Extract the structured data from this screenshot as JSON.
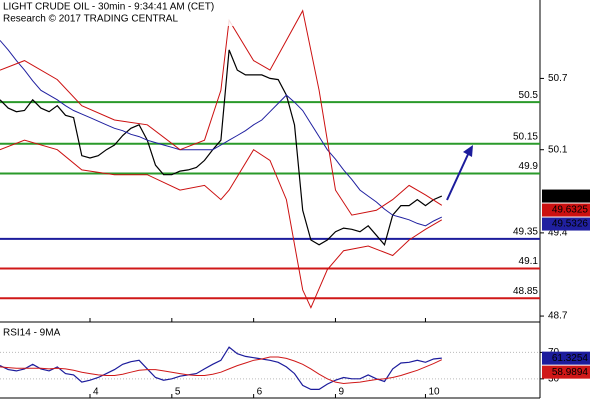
{
  "chart_data": [
    {
      "type": "line",
      "title": "LIGHT CRUDE OIL - 30min - 9:34:41 AM (CET)",
      "subtitle": "Research © 2017 TRADING CENTRAL",
      "xlim": [
        0,
        66
      ],
      "ylim": [
        48.65,
        51.36
      ],
      "yticks": [
        50.7,
        50.1,
        49.4,
        48.7
      ],
      "x": [
        0,
        1,
        2,
        3,
        4,
        5,
        6,
        7,
        8,
        9,
        10,
        11,
        12,
        13,
        14,
        15,
        16,
        17,
        18,
        19,
        20,
        21,
        22,
        23,
        24,
        25,
        26,
        27,
        28,
        29,
        30,
        31,
        32,
        33,
        34,
        35,
        36,
        37,
        38,
        39,
        40,
        41,
        42,
        43,
        44,
        45,
        46,
        47,
        48,
        49,
        50,
        51,
        52,
        53,
        54
      ],
      "series": [
        {
          "color": "#000000",
          "values": [
            50.52,
            50.45,
            50.42,
            50.43,
            50.52,
            50.45,
            50.42,
            50.47,
            50.39,
            50.37,
            50.05,
            50.03,
            50.05,
            50.1,
            50.14,
            50.22,
            50.28,
            50.31,
            50.18,
            49.97,
            49.89,
            49.89,
            49.92,
            49.93,
            49.95,
            50.01,
            50.1,
            50.18,
            50.94,
            50.77,
            50.73,
            50.73,
            50.73,
            50.7,
            50.69,
            50.56,
            50.31,
            49.59,
            49.34,
            49.3,
            49.34,
            49.41,
            49.44,
            49.43,
            49.41,
            49.46,
            49.38,
            49.3,
            49.55,
            49.63,
            49.63,
            49.68,
            49.63,
            49.68,
            49.71
          ]
        },
        {
          "color": "#2020a0",
          "values": [
            51.02,
            50.94,
            50.85,
            50.77,
            50.68,
            50.6,
            50.56,
            50.52,
            50.47,
            50.43,
            50.4,
            50.37,
            50.34,
            50.31,
            50.28,
            50.26,
            50.23,
            50.21,
            50.18,
            50.16,
            50.14,
            50.12,
            50.1,
            50.1,
            50.1,
            50.1,
            50.1,
            50.14,
            50.18,
            50.22,
            50.26,
            50.31,
            50.35,
            50.42,
            50.49,
            50.56,
            50.5,
            50.43,
            50.32,
            50.21,
            50.1,
            50.02,
            49.93,
            49.85,
            49.76,
            49.71,
            49.66,
            49.6,
            49.55,
            49.53,
            49.51,
            49.48,
            49.46,
            49.5,
            49.5326
          ]
        },
        {
          "color": "#cc1010",
          "x": [
            0,
            3,
            7,
            10,
            14,
            18,
            22,
            25,
            27,
            28,
            31,
            33,
            35,
            37,
            39,
            41,
            43,
            46,
            48,
            50,
            52,
            54
          ],
          "values": [
            50.77,
            50.85,
            50.69,
            50.47,
            50.35,
            50.31,
            50.1,
            50.18,
            50.6,
            51.19,
            50.85,
            50.77,
            51.02,
            51.27,
            50.6,
            49.76,
            49.55,
            49.59,
            49.68,
            49.8,
            49.72,
            49.6325
          ]
        },
        {
          "color": "#cc1010",
          "x": [
            0,
            3,
            7,
            10,
            14,
            18,
            22,
            25,
            27,
            28,
            31,
            33,
            35,
            37,
            38,
            40,
            42,
            45,
            48,
            50,
            52,
            54
          ],
          "values": [
            50.1,
            50.18,
            50.1,
            49.93,
            49.89,
            49.89,
            49.76,
            49.8,
            49.68,
            49.76,
            50.1,
            50.01,
            49.68,
            48.92,
            48.77,
            49.09,
            49.25,
            49.29,
            49.21,
            49.34,
            49.43,
            49.51
          ]
        }
      ],
      "levels": [
        {
          "value": 50.5,
          "color": "#2a9a2a"
        },
        {
          "value": 50.15,
          "color": "#2a9a2a"
        },
        {
          "value": 49.9,
          "color": "#2a9a2a"
        },
        {
          "value": 49.35,
          "color": "#1c1c9c"
        },
        {
          "value": 49.1,
          "color": "#d01818"
        },
        {
          "value": 48.85,
          "color": "#d01818"
        }
      ]
    },
    {
      "type": "line",
      "title": "RSI14 - 9MA",
      "xlim": [
        0,
        66
      ],
      "ylim": [
        1,
        113
      ],
      "yticks": [
        70,
        30
      ],
      "xticks": [
        {
          "value": 11,
          "label": "4"
        },
        {
          "value": 21,
          "label": "5"
        },
        {
          "value": 31,
          "label": "6"
        },
        {
          "value": 41,
          "label": "9"
        },
        {
          "value": 52,
          "label": "10"
        }
      ],
      "x": [
        0,
        1,
        2,
        3,
        4,
        5,
        6,
        7,
        8,
        9,
        10,
        11,
        12,
        13,
        14,
        15,
        16,
        17,
        18,
        19,
        20,
        21,
        22,
        23,
        24,
        25,
        26,
        27,
        28,
        29,
        30,
        31,
        32,
        33,
        34,
        35,
        36,
        37,
        38,
        39,
        40,
        41,
        42,
        43,
        44,
        45,
        46,
        47,
        48,
        49,
        50,
        51,
        52,
        53,
        54
      ],
      "series": [
        {
          "color": "#1c1c9c",
          "values": [
            50,
            44,
            42,
            45,
            52,
            45,
            42,
            48,
            38,
            36,
            25,
            28,
            32,
            38,
            44,
            52,
            56,
            58,
            45,
            32,
            28,
            30,
            34,
            36,
            38,
            45,
            52,
            58,
            78,
            68,
            64,
            62,
            60,
            58,
            55,
            48,
            38,
            20,
            14,
            14,
            22,
            28,
            32,
            30,
            30,
            36,
            30,
            26,
            45,
            54,
            55,
            58,
            55,
            60,
            61.3254
          ]
        },
        {
          "color": "#d01818",
          "values": [
            48,
            47,
            46,
            46,
            46,
            46,
            45,
            46,
            45,
            43,
            40,
            38,
            36,
            35,
            35,
            37,
            40,
            43,
            44,
            44,
            42,
            40,
            38,
            36,
            35,
            35,
            37,
            40,
            45,
            50,
            54,
            58,
            60,
            63,
            63,
            61,
            57,
            52,
            45,
            37,
            30,
            25,
            23,
            24,
            25,
            27,
            29,
            30,
            32,
            35,
            39,
            43,
            48,
            53,
            58.9894
          ]
        }
      ]
    }
  ]
}
